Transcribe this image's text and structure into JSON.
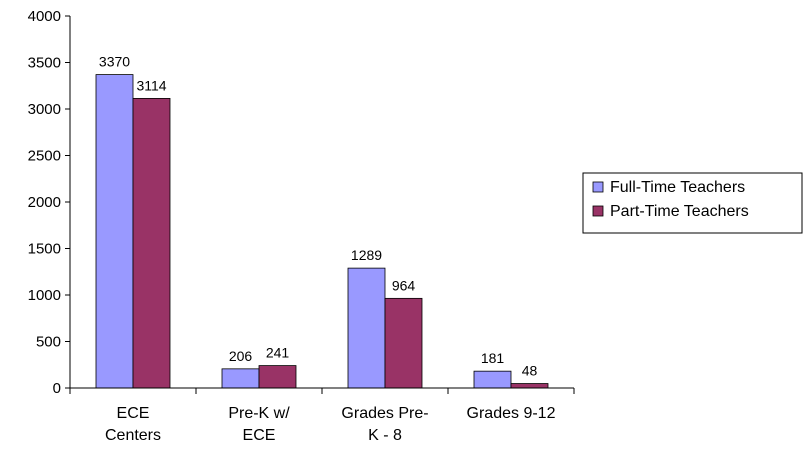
{
  "chart_data": {
    "type": "bar",
    "categories": [
      [
        "ECE",
        "Centers"
      ],
      [
        "Pre-K w/",
        "ECE"
      ],
      [
        "Grades Pre-",
        "K - 8"
      ],
      [
        "Grades 9-12"
      ]
    ],
    "series": [
      {
        "name": "Full-Time Teachers",
        "color": "#9999FF",
        "values": [
          3370,
          206,
          1289,
          181
        ]
      },
      {
        "name": "Part-Time Teachers",
        "color": "#993366",
        "values": [
          3114,
          241,
          964,
          48
        ]
      }
    ],
    "ylim": [
      0,
      4000
    ],
    "yticks": [
      "0",
      "500",
      "1000",
      "1500",
      "2000",
      "2500",
      "3000",
      "3500",
      "4000"
    ],
    "legend": "right",
    "grid": false
  }
}
